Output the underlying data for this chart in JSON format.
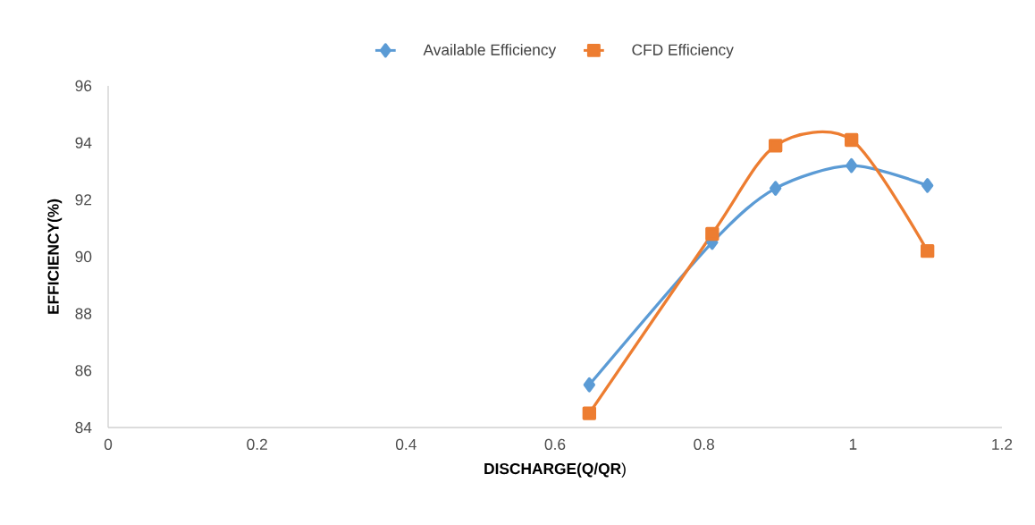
{
  "chart_data": {
    "type": "line",
    "xlabel": "**DISCHARGE(Q/QR**)",
    "ylabel": "EFFICIENCY(%)",
    "xlim": [
      0,
      1.2
    ],
    "xticks": [
      0,
      0.2,
      0.4,
      0.6,
      0.8,
      1,
      1.2
    ],
    "ylim": [
      84,
      96
    ],
    "yticks": [
      84,
      86,
      88,
      90,
      92,
      94,
      96
    ],
    "grid": false,
    "legend": "top",
    "line_style": "solid",
    "series": [
      {
        "name": "Available Efficiency",
        "color": "#5b9bd5",
        "marker": "diamond",
        "x": [
          0.646,
          0.811,
          0.896,
          0.998,
          1.1
        ],
        "values": [
          85.5,
          90.5,
          92.4,
          93.2,
          92.5
        ]
      },
      {
        "name": "CFD Efficiency",
        "color": "#ed7d31",
        "marker": "square",
        "x": [
          0.646,
          0.811,
          0.896,
          0.998,
          1.1
        ],
        "values": [
          84.5,
          90.8,
          93.9,
          94.1,
          90.2
        ]
      }
    ]
  }
}
